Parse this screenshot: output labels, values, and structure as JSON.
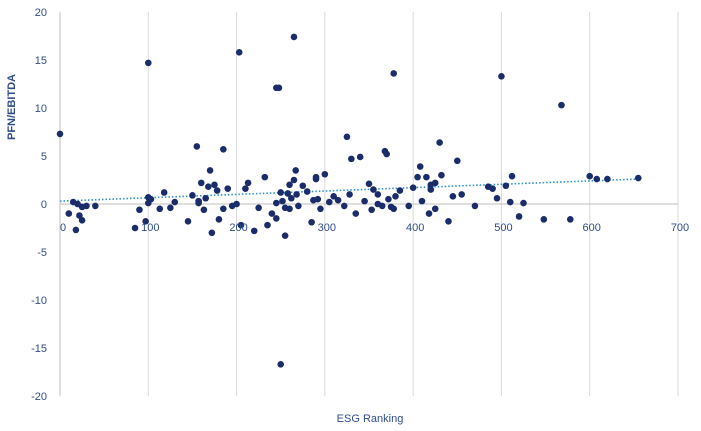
{
  "chart_data": {
    "type": "scatter",
    "title": "",
    "xlabel": "ESG Ranking",
    "ylabel": "PFN/EBITDA",
    "xlim": [
      0,
      700
    ],
    "ylim": [
      -20,
      20
    ],
    "xticks": [
      0,
      100,
      200,
      300,
      400,
      500,
      600,
      700
    ],
    "yticks": [
      20,
      15,
      10,
      5,
      0,
      -5,
      -10,
      -15,
      -20
    ],
    "grid": "vertical",
    "trendline": {
      "type": "linear",
      "style": "dotted",
      "x": [
        0,
        655
      ],
      "y": [
        0.3,
        2.6
      ]
    },
    "colors": {
      "points": "#1b2c6b",
      "trend": "#2e8fd4",
      "grid": "#d9d9d9",
      "axis": "#bfbfbf",
      "text": "#2f4d8a"
    },
    "series": [
      {
        "x": [
          0,
          20,
          30,
          22,
          25,
          40,
          25,
          18,
          15,
          10,
          85,
          90,
          97,
          100,
          103,
          100,
          113,
          118,
          125,
          130,
          145,
          150,
          155,
          157,
          160,
          165,
          163,
          168,
          170,
          172,
          178,
          180,
          185,
          185,
          190,
          195,
          200,
          205,
          210,
          213,
          220,
          225,
          232,
          235,
          240,
          245,
          245,
          248,
          250,
          252,
          255,
          255,
          258,
          260,
          260,
          262,
          265,
          267,
          268,
          270,
          275,
          280,
          285,
          287,
          290,
          290,
          292,
          295,
          300,
          305,
          310,
          315,
          322,
          328,
          330,
          335,
          340,
          345,
          350,
          353,
          355,
          360,
          365,
          368,
          370,
          372,
          375,
          378,
          380,
          385,
          395,
          400,
          405,
          408,
          410,
          415,
          418,
          420,
          425,
          425,
          430,
          432,
          440,
          445,
          450,
          455,
          470,
          485,
          490,
          495,
          505,
          510,
          512,
          520,
          525,
          548,
          578,
          600,
          608,
          620,
          655,
          100,
          265,
          203,
          245,
          378,
          500,
          568,
          250,
          325,
          420,
          157,
          175,
          360
        ],
        "y": [
          7.3,
          0,
          -0.2,
          -1.2,
          -1.7,
          -0.2,
          -0.3,
          -2.7,
          0.2,
          -1.0,
          -2.5,
          -0.6,
          -1.8,
          0.1,
          0.5,
          0.7,
          -0.5,
          1.2,
          -0.4,
          0.2,
          -1.8,
          0.9,
          6.0,
          0.1,
          2.2,
          0.6,
          -0.6,
          1.8,
          3.5,
          -3.0,
          1.4,
          -1.6,
          -0.5,
          5.7,
          1.6,
          -0.2,
          0.0,
          -2.2,
          1.6,
          2.2,
          -2.8,
          -0.4,
          2.8,
          -2.2,
          -1.0,
          0.1,
          -1.5,
          12.1,
          1.2,
          0.3,
          -0.4,
          -3.3,
          1.1,
          -0.5,
          2.0,
          0.6,
          2.5,
          3.5,
          1.0,
          -0.2,
          1.9,
          1.3,
          -1.9,
          0.4,
          2.6,
          2.8,
          0.5,
          -0.5,
          3.1,
          0.2,
          0.8,
          0.4,
          -0.2,
          1.0,
          4.7,
          -1.0,
          4.9,
          0.3,
          2.1,
          -0.6,
          1.5,
          1.0,
          -0.2,
          5.5,
          5.2,
          0.5,
          -0.3,
          -0.5,
          0.8,
          1.4,
          -0.2,
          1.7,
          2.8,
          3.9,
          0.3,
          2.8,
          -1.0,
          1.5,
          2.2,
          -0.5,
          6.4,
          3.0,
          -1.8,
          0.8,
          4.5,
          1.0,
          -0.2,
          1.8,
          1.6,
          0.6,
          1.9,
          0.2,
          2.9,
          -1.3,
          0.1,
          -1.6,
          -1.6,
          2.9,
          2.6,
          2.6,
          2.7,
          14.7,
          17.4,
          15.8,
          12.1,
          13.6,
          13.3,
          10.3,
          -16.7,
          7.0,
          2.0,
          0.3,
          2.0,
          0.0
        ]
      }
    ]
  }
}
